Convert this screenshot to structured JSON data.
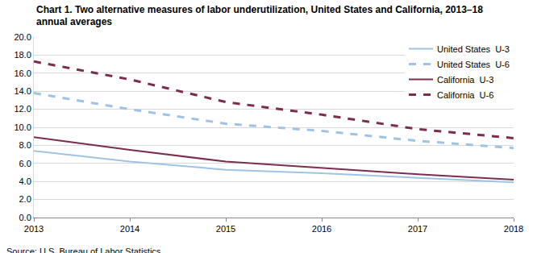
{
  "chart_data": {
    "type": "line",
    "title": [
      "Chart 1. Two alternative measures of labor underutilization, United States and California, 2013–18",
      "annual averages"
    ],
    "source": "Source: U.S. Bureau of Labor Statistics.",
    "x": [
      2013,
      2014,
      2015,
      2016,
      2017,
      2018
    ],
    "series": [
      {
        "name": "United States  U-3",
        "color": "#9dc3e6",
        "line_style": "solid",
        "values": [
          7.4,
          6.2,
          5.3,
          4.9,
          4.4,
          3.9
        ]
      },
      {
        "name": "United States  U-6",
        "color": "#9dc3e6",
        "line_style": "dash",
        "values": [
          13.8,
          12.0,
          10.4,
          9.6,
          8.5,
          7.7
        ]
      },
      {
        "name": "California  U-3",
        "color": "#7b2c4f",
        "line_style": "solid",
        "values": [
          8.9,
          7.5,
          6.2,
          5.5,
          4.8,
          4.2
        ]
      },
      {
        "name": "California  U-6",
        "color": "#7b2c4f",
        "line_style": "dash",
        "values": [
          17.3,
          15.3,
          12.8,
          11.4,
          9.8,
          8.8
        ]
      }
    ],
    "xlim": [
      2013,
      2018
    ],
    "xticks": [
      2013,
      2014,
      2015,
      2016,
      2017,
      2018
    ],
    "ylim": [
      0,
      20
    ],
    "yticks": [
      {
        "value": 0,
        "label": "0.0"
      },
      {
        "value": 2,
        "label": "2.0"
      },
      {
        "value": 4,
        "label": "4.0"
      },
      {
        "value": 6,
        "label": "6.0"
      },
      {
        "value": 8,
        "label": "8.0"
      },
      {
        "value": 10,
        "label": "10.0"
      },
      {
        "value": 12,
        "label": "12.0"
      },
      {
        "value": 14,
        "label": "14.0"
      },
      {
        "value": 16,
        "label": "16.0"
      },
      {
        "value": 18,
        "label": "18.0"
      },
      {
        "value": 20,
        "label": "20.0"
      }
    ],
    "grid": true,
    "legend": "top right"
  }
}
